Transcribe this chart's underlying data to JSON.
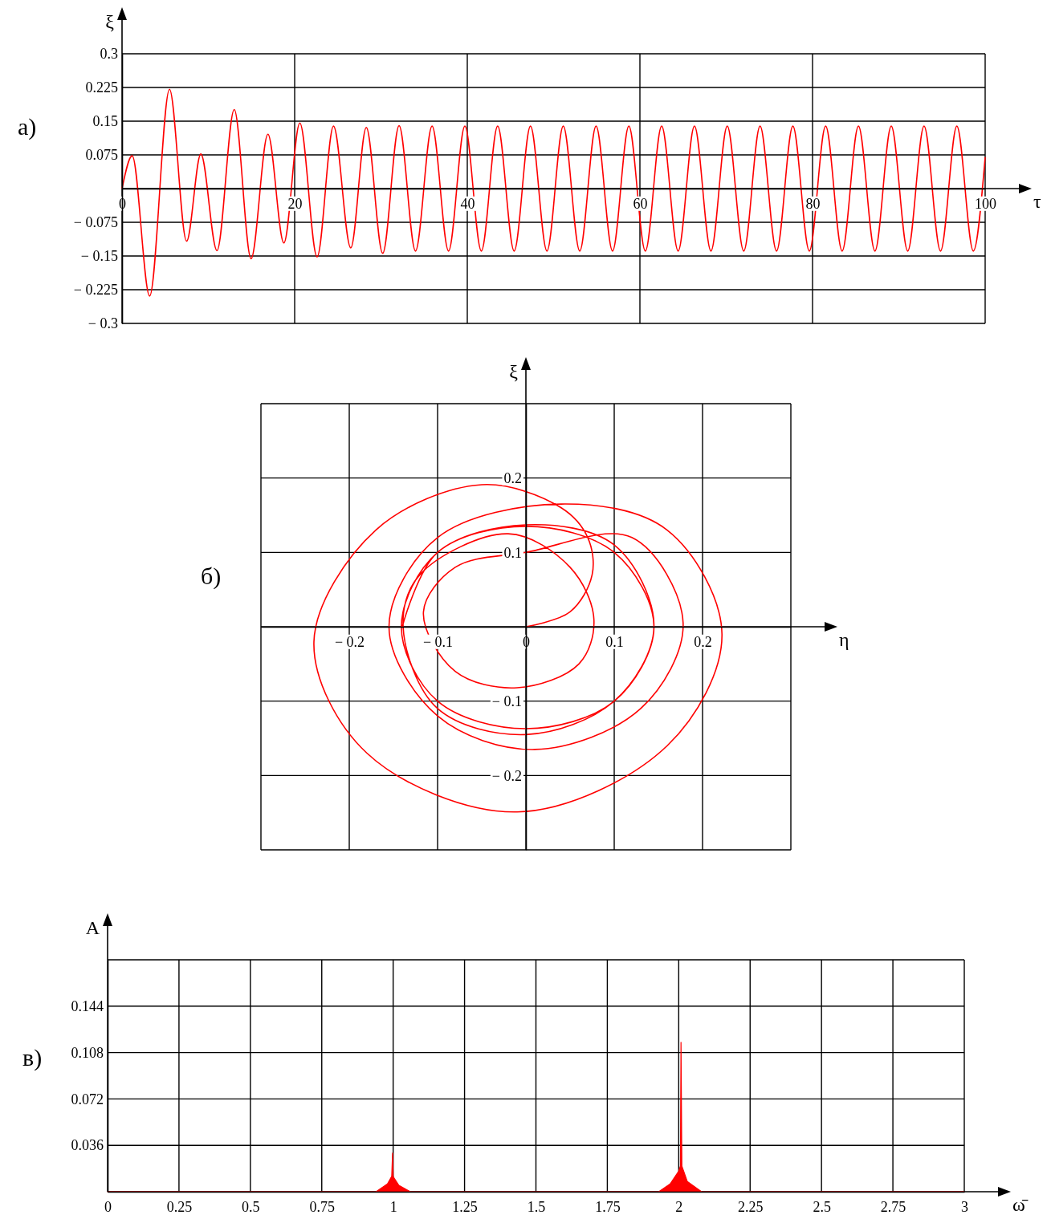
{
  "chart_data": [
    {
      "type": "line",
      "title": "а)",
      "xlabel": "τ",
      "ylabel": "ξ",
      "xlim": [
        0,
        100
      ],
      "ylim": [
        -0.3,
        0.3
      ],
      "xticks": [
        0,
        20,
        40,
        60,
        80,
        100
      ],
      "yticks": [
        {
          "value": -0.3,
          "label": "− 0.3"
        },
        {
          "value": -0.225,
          "label": "− 0.225"
        },
        {
          "value": -0.15,
          "label": "− 0.15"
        },
        {
          "value": -0.075,
          "label": "− 0.075"
        },
        {
          "value": 0,
          "label": null
        },
        0.075,
        0.15,
        0.225,
        0.3
      ],
      "grid": true,
      "series": [
        {
          "color": "#ff0000",
          "x": [
            0,
            1.18,
            3.2,
            5.5,
            7.48,
            9.13,
            11.0,
            13.0,
            14.95,
            16.9,
            18.75,
            20.6,
            22.6,
            24.5,
            26.5,
            28.3,
            30.2,
            32.1,
            34.0,
            35.92,
            37.83,
            39.72,
            41.63,
            43.52,
            45.43,
            47.32,
            49.23,
            51.12,
            53.03,
            54.92,
            56.83,
            58.72,
            60.63,
            62.52,
            64.43,
            66.32,
            68.23,
            70.12,
            72.03,
            73.92,
            75.83,
            77.72,
            79.63,
            81.52,
            83.43,
            85.32,
            87.23,
            89.12,
            91.03,
            92.92,
            94.83,
            96.72,
            98.63,
            100
          ],
          "values": [
            0,
            0.073,
            -0.239,
            0.221,
            -0.117,
            0.077,
            -0.138,
            0.176,
            -0.156,
            0.121,
            -0.121,
            0.146,
            -0.152,
            0.139,
            -0.132,
            0.136,
            -0.144,
            0.14,
            -0.139,
            0.139,
            -0.139,
            0.139,
            -0.139,
            0.139,
            -0.139,
            0.139,
            -0.139,
            0.139,
            -0.139,
            0.139,
            -0.139,
            0.139,
            -0.139,
            0.139,
            -0.139,
            0.139,
            -0.139,
            0.139,
            -0.139,
            0.139,
            -0.139,
            0.139,
            -0.139,
            0.139,
            -0.139,
            0.139,
            -0.139,
            0.139,
            -0.139,
            0.139,
            -0.139,
            0.139,
            -0.139,
            0.07
          ]
        }
      ]
    },
    {
      "type": "line",
      "title": "б)",
      "xlabel": "η",
      "ylabel": "ξ",
      "xlim": [
        -0.3,
        0.3
      ],
      "ylim": [
        -0.3,
        0.3
      ],
      "xticks": [
        {
          "value": -0.3,
          "label": null
        },
        {
          "value": -0.2,
          "label": "− 0.2"
        },
        {
          "value": -0.1,
          "label": "− 0.1"
        },
        0,
        0.1,
        0.2,
        {
          "value": 0.3,
          "label": null
        }
      ],
      "yticks": [
        {
          "value": -0.3,
          "label": null
        },
        {
          "value": -0.2,
          "label": "− 0.2"
        },
        {
          "value": -0.1,
          "label": "− 0.1"
        },
        {
          "value": 0,
          "label": null
        },
        0.1,
        0.2,
        {
          "value": 0.3,
          "label": null
        }
      ],
      "grid": true,
      "series": [
        {
          "color": "#ff0000",
          "x": [
            0,
            0.05,
            0.075,
            0.07,
            0.04,
            -0.05,
            -0.17,
            -0.24,
            -0.18,
            -0.01,
            0.16,
            0.222,
            0.16,
            0.04,
            -0.1,
            -0.155,
            -0.1,
            0.01,
            0.13,
            0.178,
            0.12,
            0.0,
            -0.08,
            -0.116,
            -0.08,
            -0.01,
            0.06,
            0.077,
            0.05,
            -0.02,
            -0.12,
            -0.139,
            -0.1,
            0,
            0.1,
            0.145,
            0.1,
            0,
            -0.1,
            -0.141,
            -0.1,
            0,
            0.1,
            0.145,
            0.1,
            0,
            -0.1,
            -0.14
          ],
          "values": [
            0,
            0.02,
            0.07,
            0.12,
            0.16,
            0.191,
            0.13,
            -0.02,
            -0.17,
            -0.249,
            -0.16,
            -0.01,
            0.13,
            0.165,
            0.12,
            0.0,
            -0.12,
            -0.165,
            -0.11,
            0.005,
            0.12,
            0.1,
            0.08,
            0.02,
            -0.06,
            -0.082,
            -0.05,
            0.01,
            0.08,
            0.125,
            0.07,
            0,
            -0.11,
            -0.145,
            -0.1,
            0,
            0.11,
            0.137,
            0.1,
            0,
            -0.1,
            -0.137,
            -0.1,
            0,
            0.1,
            0.135,
            0.1,
            0
          ]
        }
      ]
    },
    {
      "type": "area",
      "title": "в)",
      "xlabel": "ω̄",
      "ylabel": "A",
      "xlim": [
        0,
        3
      ],
      "ylim": [
        0,
        0.18
      ],
      "xticks": [
        0,
        0.25,
        0.5,
        0.75,
        1,
        1.25,
        1.5,
        1.75,
        2,
        2.25,
        2.5,
        2.75,
        3
      ],
      "yticks": [
        {
          "value": 0,
          "label": null
        },
        0.036,
        0.072,
        0.108,
        0.144,
        {
          "value": 0.18,
          "label": null
        }
      ],
      "grid": true,
      "series": [
        {
          "color": "#ff0000",
          "x": [
            0,
            0.94,
            0.98,
            0.995,
            0.998,
            1.0,
            1.005,
            1.02,
            1.06,
            1.93,
            1.97,
            2.0,
            2.006,
            2.008,
            2.011,
            2.03,
            2.08,
            3
          ],
          "values": [
            0,
            0,
            0.006,
            0.012,
            0.03,
            0.012,
            0.01,
            0.005,
            0,
            0,
            0.006,
            0.016,
            0.02,
            0.116,
            0.02,
            0.008,
            0,
            0
          ]
        }
      ]
    }
  ]
}
